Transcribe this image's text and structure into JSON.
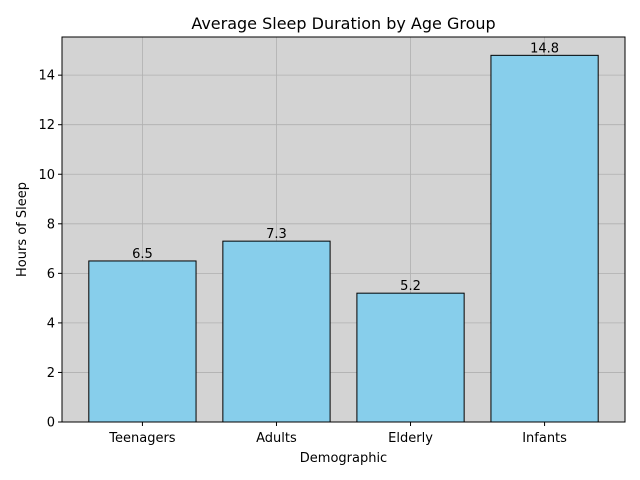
{
  "chart_data": {
    "type": "bar",
    "title": "Average Sleep Duration by Age Group",
    "xlabel": "Demographic",
    "ylabel": "Hours of Sleep",
    "categories": [
      "Teenagers",
      "Adults",
      "Elderly",
      "Infants"
    ],
    "values": [
      6.5,
      7.3,
      5.2,
      14.8
    ],
    "value_labels": [
      "6.5",
      "7.3",
      "5.2",
      "14.8"
    ],
    "ylim": [
      0,
      15.54
    ],
    "yticks": [
      0,
      2,
      4,
      6,
      8,
      10,
      12,
      14
    ],
    "grid": true,
    "legend": "none",
    "colors": {
      "bar_fill": "#87ceeb",
      "bar_edge": "#000000",
      "plot_background": "#d3d3d3",
      "grid": "#b0b0b0"
    }
  }
}
